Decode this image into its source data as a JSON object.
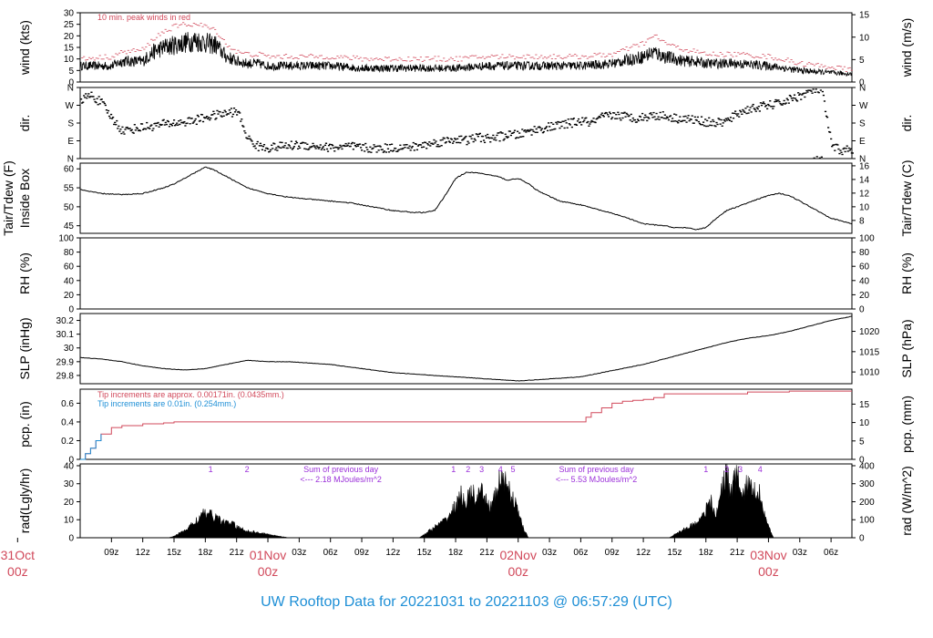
{
  "colors": {
    "red": "#d1495b",
    "blue": "#1e8fd6",
    "purple": "#9b30d9",
    "black": "#000000"
  },
  "title": "UW Rooftop Data for 20221031  to  20221103 @ 06:57:29  (UTC)",
  "x_hours_range": [
    6,
    80
  ],
  "x_ticks": [
    {
      "t": 9,
      "label": "09z"
    },
    {
      "t": 12,
      "label": "12z"
    },
    {
      "t": 15,
      "label": "15z"
    },
    {
      "t": 18,
      "label": "18z"
    },
    {
      "t": 21,
      "label": "21z"
    },
    {
      "t": 27,
      "label": "03z"
    },
    {
      "t": 30,
      "label": "06z"
    },
    {
      "t": 33,
      "label": "09z"
    },
    {
      "t": 36,
      "label": "12z"
    },
    {
      "t": 39,
      "label": "15z"
    },
    {
      "t": 42,
      "label": "18z"
    },
    {
      "t": 45,
      "label": "21z"
    },
    {
      "t": 51,
      "label": "03z"
    },
    {
      "t": 54,
      "label": "06z"
    },
    {
      "t": 57,
      "label": "09z"
    },
    {
      "t": 60,
      "label": "12z"
    },
    {
      "t": 63,
      "label": "15z"
    },
    {
      "t": 66,
      "label": "18z"
    },
    {
      "t": 69,
      "label": "21z"
    },
    {
      "t": 75,
      "label": "03z"
    },
    {
      "t": 78,
      "label": "06z"
    }
  ],
  "day_labels": [
    {
      "t": 0,
      "line1": "31Oct",
      "line2": "00z"
    },
    {
      "t": 24,
      "line1": "01Nov",
      "line2": "00z"
    },
    {
      "t": 48,
      "line1": "02Nov",
      "line2": "00z"
    },
    {
      "t": 72,
      "line1": "03Nov",
      "line2": "00z"
    }
  ],
  "chart_data": [
    {
      "id": "wind",
      "type": "line",
      "ylabel": "wind (kts)",
      "ylabel_right": "wind (m/s)",
      "ylim": [
        0,
        30
      ],
      "yticks": [
        0,
        5,
        10,
        15,
        20,
        25,
        30
      ],
      "yticks_right": [
        0,
        5,
        10,
        15
      ],
      "right_factor": 1.94384,
      "annotation": "10 min. peak winds in red",
      "series": [
        {
          "style": "black-noisy",
          "x": [
            6,
            9,
            10,
            12,
            13,
            14,
            15,
            16,
            17,
            18,
            19,
            20,
            21,
            22,
            23,
            24,
            27,
            30,
            33,
            36,
            39,
            42,
            45,
            48,
            51,
            54,
            57,
            60,
            61,
            62,
            63,
            64,
            65,
            66,
            69,
            72,
            75,
            78,
            80
          ],
          "y": [
            7,
            7,
            9,
            9,
            13,
            15,
            16,
            17,
            18,
            17,
            16,
            11,
            9,
            8,
            8,
            7,
            7,
            7,
            6,
            6,
            6,
            6,
            7,
            7,
            7,
            7,
            8,
            11,
            13,
            11,
            10,
            9,
            9,
            8,
            8,
            7,
            5,
            4,
            3.5
          ]
        },
        {
          "style": "red-dash",
          "x": [
            6,
            9,
            10,
            12,
            13,
            14,
            15,
            16,
            17,
            18,
            19,
            20,
            21,
            22,
            23,
            24,
            27,
            30,
            33,
            36,
            39,
            42,
            45,
            48,
            51,
            54,
            57,
            60,
            61,
            62,
            63,
            64,
            65,
            66,
            69,
            72,
            75,
            78,
            80
          ],
          "y": [
            10,
            11,
            13,
            14,
            19,
            22,
            24,
            25,
            25,
            24,
            22,
            16,
            13,
            12,
            12,
            11,
            11,
            11,
            10,
            10,
            10,
            10,
            11,
            11,
            11,
            11,
            12,
            17,
            20,
            17,
            15,
            14,
            13,
            12,
            12,
            11,
            8,
            6.5,
            5
          ]
        }
      ]
    },
    {
      "id": "dir",
      "type": "scatter",
      "ylabel": "dir.",
      "ylabel_right": "dir.",
      "ylim": [
        0,
        360
      ],
      "yticks": [
        0,
        90,
        180,
        270,
        360
      ],
      "ytick_labels": [
        "N",
        "E",
        "S",
        "W",
        "N"
      ],
      "series": [
        {
          "x": [
            6,
            7,
            8,
            9,
            10,
            11,
            12,
            13,
            14,
            15,
            16,
            17,
            18,
            19,
            20,
            21,
            22,
            23,
            24,
            25,
            26,
            27,
            28,
            29,
            30,
            31,
            32,
            33,
            34,
            35,
            36,
            37,
            38,
            39,
            40,
            41,
            42,
            43,
            44,
            45,
            46,
            47,
            48,
            49,
            50,
            51,
            52,
            53,
            54,
            55,
            56,
            57,
            58,
            59,
            60,
            61,
            62,
            63,
            64,
            65,
            66,
            67,
            68,
            69,
            70,
            71,
            72,
            73,
            74,
            75,
            76,
            77,
            78,
            79,
            80
          ],
          "y": [
            300,
            320,
            280,
            200,
            140,
            150,
            160,
            165,
            175,
            180,
            185,
            195,
            210,
            220,
            230,
            240,
            100,
            60,
            55,
            60,
            65,
            70,
            65,
            60,
            55,
            58,
            60,
            55,
            50,
            52,
            55,
            55,
            60,
            70,
            80,
            90,
            100,
            90,
            110,
            100,
            110,
            120,
            120,
            140,
            150,
            160,
            170,
            180,
            190,
            180,
            210,
            220,
            215,
            205,
            210,
            220,
            215,
            205,
            200,
            195,
            185,
            180,
            190,
            230,
            250,
            260,
            270,
            280,
            300,
            320,
            340,
            355,
            60,
            40,
            50
          ]
        }
      ]
    },
    {
      "id": "temp",
      "type": "line",
      "ylabel": "Tair/Tdew (F)",
      "ylabel2": "Inside Box",
      "ylabel_right": "Tair/Tdew (C)",
      "ylim": [
        43,
        61.5
      ],
      "yticks": [
        45,
        50,
        55,
        60
      ],
      "yticks_right": [
        8,
        10,
        12,
        14,
        16
      ],
      "series": [
        {
          "x": [
            6,
            8,
            10,
            12,
            14,
            15,
            16,
            17,
            18,
            19,
            20,
            21,
            22,
            24,
            26,
            28,
            30,
            32,
            34,
            36,
            38,
            39,
            40,
            41,
            42,
            43,
            44,
            45,
            46,
            47,
            48,
            49,
            50,
            52,
            54,
            56,
            58,
            60,
            62,
            63,
            64,
            65,
            66,
            67,
            68,
            69,
            70,
            71,
            72,
            73,
            74,
            76,
            78,
            80
          ],
          "y": [
            54.5,
            53.5,
            53.2,
            53.5,
            55,
            56,
            57.5,
            59,
            60.5,
            59.5,
            58,
            56.5,
            55,
            53.5,
            52.5,
            52,
            51.5,
            51,
            50,
            49,
            48.5,
            48.5,
            49,
            53,
            57.5,
            59,
            59,
            58.5,
            58,
            57,
            57.5,
            56,
            54,
            51.5,
            50.5,
            49,
            47.5,
            45.5,
            45,
            44.5,
            44.5,
            44,
            44.5,
            47,
            49,
            50,
            51,
            52,
            53,
            53.5,
            53,
            50,
            47,
            45.5
          ]
        }
      ]
    },
    {
      "id": "rh",
      "type": "line",
      "ylabel": "RH (%)",
      "ylabel_right": "RH (%)",
      "ylim": [
        0,
        100
      ],
      "yticks": [
        0,
        20,
        40,
        60,
        80,
        100
      ],
      "yticks_right": [
        0,
        20,
        40,
        60,
        80,
        100
      ],
      "series": []
    },
    {
      "id": "slp",
      "type": "line",
      "ylabel": "SLP (inHg)",
      "ylabel_right": "SLP (hPa)",
      "ylim": [
        29.74,
        30.25
      ],
      "yticks": [
        29.8,
        29.9,
        30.0,
        30.1,
        30.2
      ],
      "yticks_right": [
        1010,
        1015,
        1020
      ],
      "series": [
        {
          "x": [
            6,
            8,
            10,
            12,
            14,
            16,
            18,
            20,
            22,
            24,
            26,
            28,
            30,
            32,
            34,
            36,
            38,
            40,
            42,
            44,
            46,
            48,
            50,
            52,
            54,
            56,
            58,
            60,
            62,
            64,
            66,
            68,
            70,
            72,
            74,
            76,
            78,
            80
          ],
          "y": [
            29.93,
            29.92,
            29.9,
            29.87,
            29.85,
            29.84,
            29.85,
            29.88,
            29.91,
            29.9,
            29.9,
            29.89,
            29.88,
            29.86,
            29.84,
            29.82,
            29.81,
            29.8,
            29.79,
            29.78,
            29.77,
            29.76,
            29.77,
            29.78,
            29.79,
            29.82,
            29.85,
            29.88,
            29.92,
            29.96,
            30.0,
            30.04,
            30.07,
            30.09,
            30.12,
            30.16,
            30.2,
            30.23
          ]
        }
      ]
    },
    {
      "id": "pcp",
      "type": "line",
      "ylabel": "pcp. (in)",
      "ylabel_right": "pcp. (mm)",
      "ylim": [
        0,
        0.75
      ],
      "yticks": [
        0.0,
        0.2,
        0.4,
        0.6
      ],
      "yticks_right": [
        0,
        5,
        10,
        15
      ],
      "annotations": [
        "Tip increments are approx. 0.00171in. (0.0435mm.)",
        "Tip increments are 0.01in. (0.254mm.)"
      ],
      "series": [
        {
          "name": "",
          "style": "red",
          "x": [
            6,
            6.5,
            7,
            7.5,
            8,
            9,
            10,
            12,
            14,
            15,
            20,
            25,
            30,
            35,
            40,
            45,
            50,
            54,
            54.5,
            55,
            56,
            57,
            58,
            59,
            60,
            61,
            62,
            66,
            70,
            74,
            80
          ],
          "y": [
            0,
            0.06,
            0.12,
            0.2,
            0.27,
            0.34,
            0.36,
            0.38,
            0.39,
            0.4,
            0.4,
            0.4,
            0.4,
            0.4,
            0.4,
            0.4,
            0.4,
            0.4,
            0.45,
            0.5,
            0.55,
            0.6,
            0.62,
            0.63,
            0.64,
            0.66,
            0.7,
            0.7,
            0.72,
            0.73,
            0.73
          ]
        },
        {
          "name": "",
          "style": "blue",
          "x": [
            6,
            6.5,
            7,
            7.5,
            8
          ],
          "y": [
            0,
            0.06,
            0.12,
            0.2,
            0.27
          ]
        }
      ]
    },
    {
      "id": "rad",
      "type": "area",
      "ylabel": "rad(Lgly/hr)",
      "ylabel_right": "rad (W/m^2)",
      "ylim": [
        0,
        41
      ],
      "yticks": [
        0,
        10,
        20,
        30,
        40
      ],
      "yticks_right": [
        0,
        100,
        200,
        300,
        400
      ],
      "hour_marks": [
        {
          "t": 18.5,
          "label": "1"
        },
        {
          "t": 22,
          "label": "2"
        },
        {
          "t": 41.8,
          "label": "1"
        },
        {
          "t": 43.2,
          "label": "2"
        },
        {
          "t": 44.5,
          "label": "3"
        },
        {
          "t": 46.3,
          "label": "4"
        },
        {
          "t": 47.5,
          "label": "5"
        },
        {
          "t": 66,
          "label": "1"
        },
        {
          "t": 68,
          "label": "2"
        },
        {
          "t": 69.3,
          "label": "3"
        },
        {
          "t": 71.2,
          "label": "4"
        }
      ],
      "annotations": [
        {
          "t": 31,
          "line1": "Sum of previous day",
          "line2": "<--- 2.18 MJoules/m^2"
        },
        {
          "t": 55.5,
          "line1": "Sum of previous day",
          "line2": "<--- 5.53 MJoules/m^2"
        }
      ],
      "series": [
        {
          "x": [
            14.5,
            15,
            16,
            17,
            17.5,
            18,
            18.5,
            19,
            19.5,
            20,
            20.5,
            21,
            21.5,
            22,
            23,
            24,
            25,
            26,
            38.5,
            39,
            40,
            41,
            41.5,
            42,
            42.5,
            43,
            43.5,
            44,
            44.5,
            45,
            45.5,
            46,
            46.3,
            46.6,
            47,
            47.5,
            48,
            48.5,
            49,
            62.5,
            63,
            64,
            65,
            65.5,
            66,
            66.5,
            67,
            67.5,
            68,
            68.3,
            68.6,
            69,
            69.5,
            70,
            70.5,
            71,
            71.5,
            72,
            72.5
          ],
          "y": [
            0,
            1,
            4,
            9,
            12,
            14,
            13,
            12,
            10,
            8,
            9,
            6,
            5,
            4,
            3,
            2,
            1,
            0,
            0,
            2,
            6,
            10,
            14,
            18,
            24,
            20,
            26,
            22,
            25,
            20,
            18,
            28,
            34,
            30,
            31,
            22,
            15,
            5,
            0,
            0,
            2,
            5,
            8,
            12,
            16,
            20,
            12,
            28,
            40,
            24,
            30,
            36,
            22,
            32,
            25,
            28,
            18,
            6,
            0
          ]
        }
      ]
    }
  ]
}
